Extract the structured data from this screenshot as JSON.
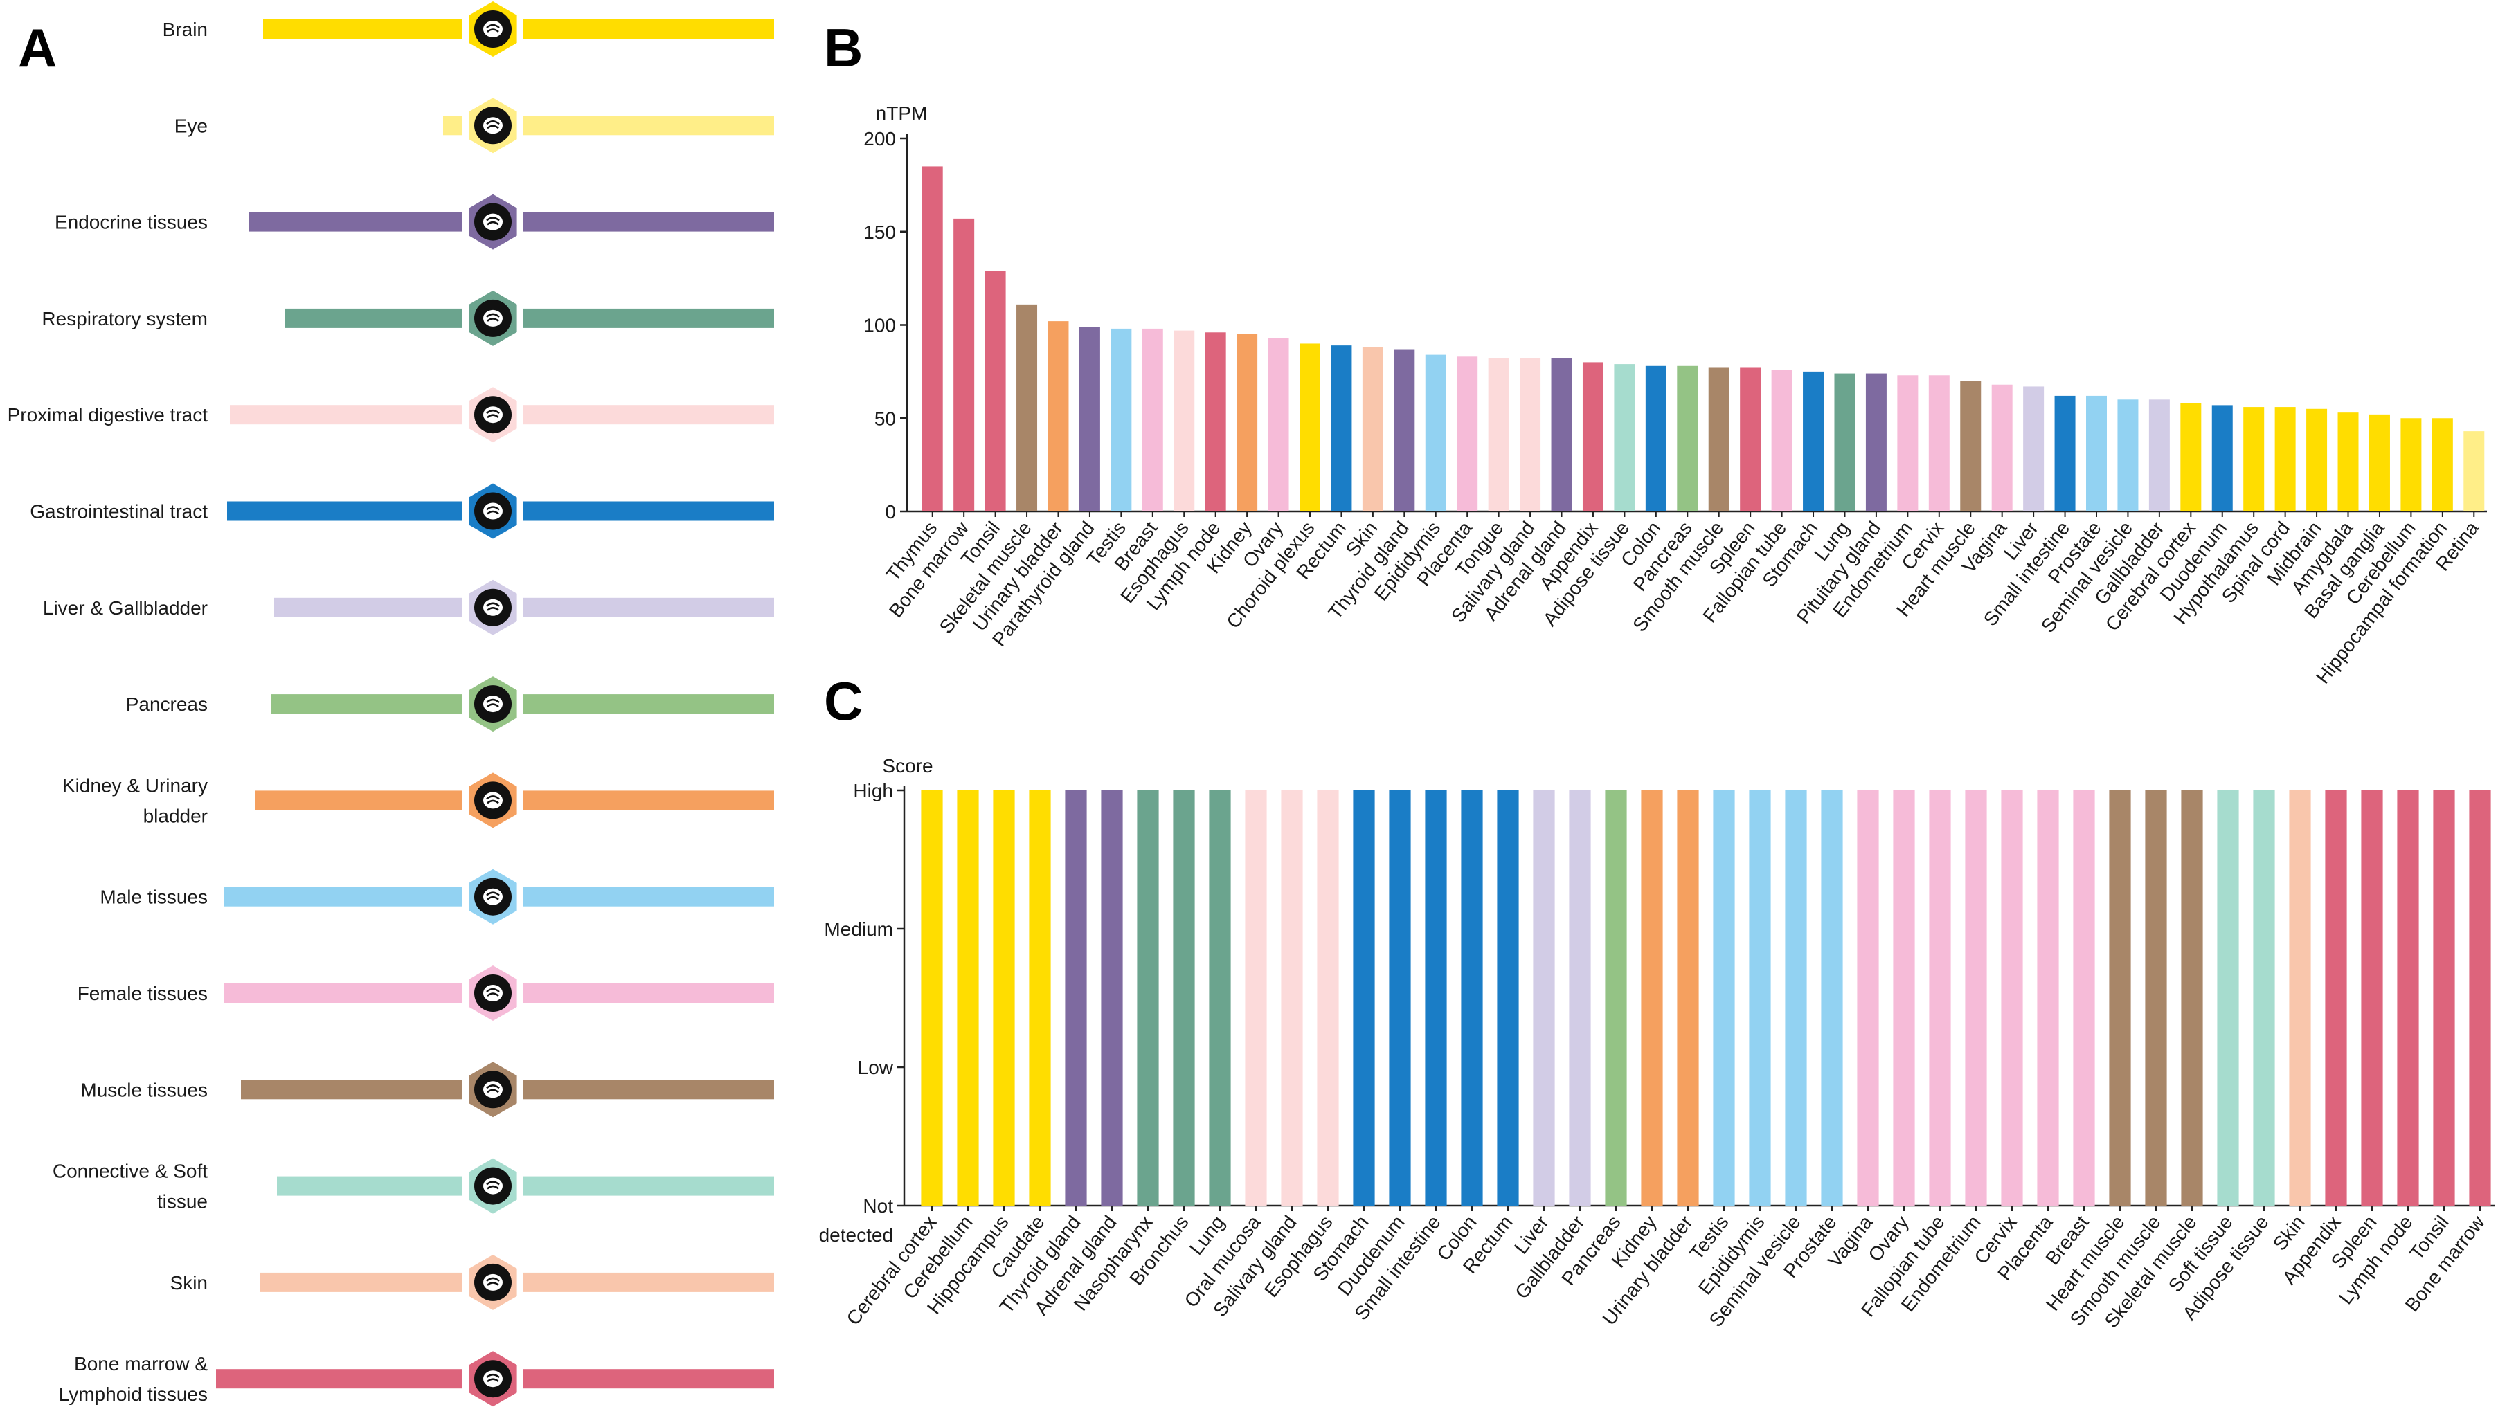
{
  "panels": {
    "A": "A",
    "B": "B",
    "C": "C"
  },
  "colors": {
    "brain": "#FFDD00",
    "eye": "#FFEE88",
    "endocrine": "#7E6AA0",
    "respiratory": "#6BA48E",
    "proximal_digestive": "#FCDADA",
    "gastrointestinal": "#1A7DC6",
    "liver_gallbladder": "#D2CCE6",
    "pancreas": "#94C385",
    "kidney_urinary": "#F5A05F",
    "male": "#92D2F2",
    "female": "#F6BBD8",
    "muscle": "#A88668",
    "connective": "#A6DCCE",
    "skin": "#F9C6AC",
    "bone_marrow_lymphoid": "#DD647C"
  },
  "tissue_groups": [
    {
      "label": [
        "Brain"
      ],
      "color": "#FFDD00",
      "icon": "brain-icon",
      "bar_extent": 0.83
    },
    {
      "label": [
        "Eye"
      ],
      "color": "#FFEE88",
      "icon": "eye-icon",
      "bar_extent": 0.18
    },
    {
      "label": [
        "Endocrine tissues"
      ],
      "color": "#7E6AA0",
      "icon": "thyroid-icon",
      "bar_extent": 0.88
    },
    {
      "label": [
        "Respiratory system"
      ],
      "color": "#6BA48E",
      "icon": "lungs-icon",
      "bar_extent": 0.75
    },
    {
      "label": [
        "Proximal digestive tract"
      ],
      "color": "#FCDADA",
      "icon": "head-icon",
      "bar_extent": 0.95
    },
    {
      "label": [
        "Gastrointestinal tract"
      ],
      "color": "#1A7DC6",
      "icon": "stomach-icon",
      "bar_extent": 0.96
    },
    {
      "label": [
        "Liver & Gallbladder"
      ],
      "color": "#D2CCE6",
      "icon": "liver-icon",
      "bar_extent": 0.79
    },
    {
      "label": [
        "Pancreas"
      ],
      "color": "#94C385",
      "icon": "pancreas-icon",
      "bar_extent": 0.8
    },
    {
      "label": [
        "Kidney & Urinary",
        "bladder"
      ],
      "color": "#F5A05F",
      "icon": "kidney-icon",
      "bar_extent": 0.86
    },
    {
      "label": [
        "Male tissues"
      ],
      "color": "#92D2F2",
      "icon": "male-icon",
      "bar_extent": 0.97
    },
    {
      "label": [
        "Female tissues"
      ],
      "color": "#F6BBD8",
      "icon": "uterus-icon",
      "bar_extent": 0.97
    },
    {
      "label": [
        "Muscle tissues"
      ],
      "color": "#A88668",
      "icon": "heart-icon",
      "bar_extent": 0.91
    },
    {
      "label": [
        "Connective & Soft",
        "tissue"
      ],
      "color": "#A6DCCE",
      "icon": "cells-icon",
      "bar_extent": 0.78
    },
    {
      "label": [
        "Skin"
      ],
      "color": "#F9C6AC",
      "icon": "skin-icon",
      "bar_extent": 0.84
    },
    {
      "label": [
        "Bone marrow &",
        "Lymphoid tissues"
      ],
      "color": "#DD647C",
      "icon": "lymph-icon",
      "bar_extent": 1.0
    }
  ],
  "chart_data": [
    {
      "panel": "B",
      "type": "bar",
      "title": "",
      "ylabel": "nTPM",
      "xlabel": "",
      "ylim": [
        0,
        200
      ],
      "yticks": [
        0,
        50,
        100,
        150,
        200
      ],
      "grid": false,
      "categories": [
        "Thymus",
        "Bone marrow",
        "Tonsil",
        "Skeletal muscle",
        "Urinary bladder",
        "Parathyroid gland",
        "Testis",
        "Breast",
        "Esophagus",
        "Lymph node",
        "Kidney",
        "Ovary",
        "Choroid plexus",
        "Rectum",
        "Skin",
        "Thyroid gland",
        "Epididymis",
        "Placenta",
        "Tongue",
        "Salivary gland",
        "Adrenal gland",
        "Appendix",
        "Adipose tissue",
        "Colon",
        "Pancreas",
        "Smooth muscle",
        "Spleen",
        "Fallopian tube",
        "Stomach",
        "Lung",
        "Pituitary gland",
        "Endometrium",
        "Cervix",
        "Heart muscle",
        "Vagina",
        "Liver",
        "Small intestine",
        "Prostate",
        "Seminal vesicle",
        "Gallbladder",
        "Cerebral cortex",
        "Duodenum",
        "Hypothalamus",
        "Spinal cord",
        "Midbrain",
        "Amygdala",
        "Basal ganglia",
        "Cerebellum",
        "Hippocampal formation",
        "Retina"
      ],
      "values": [
        185,
        157,
        129,
        111,
        102,
        99,
        98,
        98,
        97,
        96,
        95,
        93,
        90,
        89,
        88,
        87,
        84,
        83,
        82,
        82,
        82,
        80,
        79,
        78,
        78,
        77,
        77,
        76,
        75,
        74,
        74,
        73,
        73,
        70,
        68,
        67,
        62,
        62,
        60,
        60,
        58,
        57,
        56,
        56,
        55,
        53,
        52,
        50,
        50,
        43
      ],
      "bar_colors": [
        "#DD647C",
        "#DD647C",
        "#DD647C",
        "#A88668",
        "#F5A05F",
        "#7E6AA0",
        "#92D2F2",
        "#F6BBD8",
        "#FCDADA",
        "#DD647C",
        "#F5A05F",
        "#F6BBD8",
        "#FFDD00",
        "#1A7DC6",
        "#F9C6AC",
        "#7E6AA0",
        "#92D2F2",
        "#F6BBD8",
        "#FCDADA",
        "#FCDADA",
        "#7E6AA0",
        "#DD647C",
        "#A6DCCE",
        "#1A7DC6",
        "#94C385",
        "#A88668",
        "#DD647C",
        "#F6BBD8",
        "#1A7DC6",
        "#6BA48E",
        "#7E6AA0",
        "#F6BBD8",
        "#F6BBD8",
        "#A88668",
        "#F6BBD8",
        "#D2CCE6",
        "#1A7DC6",
        "#92D2F2",
        "#92D2F2",
        "#D2CCE6",
        "#FFDD00",
        "#1A7DC6",
        "#FFDD00",
        "#FFDD00",
        "#FFDD00",
        "#FFDD00",
        "#FFDD00",
        "#FFDD00",
        "#FFDD00",
        "#FFEE88"
      ]
    },
    {
      "panel": "C",
      "type": "bar",
      "title": "",
      "ylabel": "Score",
      "xlabel": "",
      "ylim": [
        0,
        3
      ],
      "yticks": [
        0,
        1,
        2,
        3
      ],
      "ytick_labels": [
        [
          "Not",
          "detected"
        ],
        [
          "Low"
        ],
        [
          "Medium"
        ],
        [
          "High"
        ]
      ],
      "grid": false,
      "categories": [
        "Cerebral cortex",
        "Cerebellum",
        "Hippocampus",
        "Caudate",
        "Thyroid gland",
        "Adrenal gland",
        "Nasopharynx",
        "Bronchus",
        "Lung",
        "Oral mucosa",
        "Salivary gland",
        "Esophagus",
        "Stomach",
        "Duodenum",
        "Small intestine",
        "Colon",
        "Rectum",
        "Liver",
        "Gallbladder",
        "Pancreas",
        "Kidney",
        "Urinary bladder",
        "Testis",
        "Epididymis",
        "Seminal vesicle",
        "Prostate",
        "Vagina",
        "Ovary",
        "Fallopian tube",
        "Endometrium",
        "Cervix",
        "Placenta",
        "Breast",
        "Heart muscle",
        "Smooth muscle",
        "Skeletal muscle",
        "Soft tissue",
        "Adipose tissue",
        "Skin",
        "Appendix",
        "Spleen",
        "Lymph node",
        "Tonsil",
        "Bone marrow"
      ],
      "values": [
        3,
        3,
        3,
        3,
        3,
        3,
        3,
        3,
        3,
        3,
        3,
        3,
        3,
        3,
        3,
        3,
        3,
        3,
        3,
        3,
        3,
        3,
        3,
        3,
        3,
        3,
        3,
        3,
        3,
        3,
        3,
        3,
        3,
        3,
        3,
        3,
        3,
        3,
        3,
        3,
        3,
        3,
        3,
        3
      ],
      "bar_colors": [
        "#FFDD00",
        "#FFDD00",
        "#FFDD00",
        "#FFDD00",
        "#7E6AA0",
        "#7E6AA0",
        "#6BA48E",
        "#6BA48E",
        "#6BA48E",
        "#FCDADA",
        "#FCDADA",
        "#FCDADA",
        "#1A7DC6",
        "#1A7DC6",
        "#1A7DC6",
        "#1A7DC6",
        "#1A7DC6",
        "#D2CCE6",
        "#D2CCE6",
        "#94C385",
        "#F5A05F",
        "#F5A05F",
        "#92D2F2",
        "#92D2F2",
        "#92D2F2",
        "#92D2F2",
        "#F6BBD8",
        "#F6BBD8",
        "#F6BBD8",
        "#F6BBD8",
        "#F6BBD8",
        "#F6BBD8",
        "#F6BBD8",
        "#A88668",
        "#A88668",
        "#A88668",
        "#A6DCCE",
        "#A6DCCE",
        "#F9C6AC",
        "#DD647C",
        "#DD647C",
        "#DD647C",
        "#DD647C",
        "#DD647C"
      ]
    }
  ]
}
